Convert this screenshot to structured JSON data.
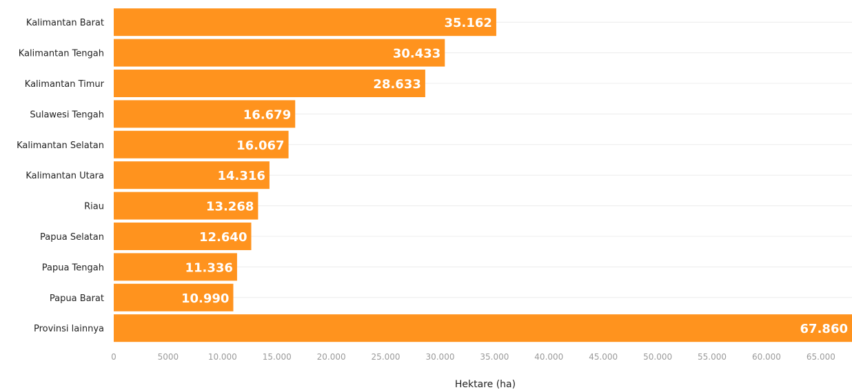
{
  "chart_data": {
    "type": "bar",
    "orientation": "horizontal",
    "categories": [
      "Kalimantan Barat",
      "Kalimantan Tengah",
      "Kalimantan Timur",
      "Sulawesi Tengah",
      "Kalimantan Selatan",
      "Kalimantan Utara",
      "Riau",
      "Papua Selatan",
      "Papua Tengah",
      "Papua Barat",
      "Provinsi lainnya"
    ],
    "values": [
      35162,
      30433,
      28633,
      16679,
      16067,
      14316,
      13268,
      12640,
      11336,
      10990,
      67860
    ],
    "value_labels": [
      "35.162",
      "30.433",
      "28.633",
      "16.679",
      "16.067",
      "14.316",
      "13.268",
      "12.640",
      "11.336",
      "10.990",
      "67.860"
    ],
    "xlabel": "Hektare (ha)",
    "xlim": [
      0,
      67860
    ],
    "xticks": [
      0,
      5000,
      10000,
      15000,
      20000,
      25000,
      30000,
      35000,
      40000,
      45000,
      50000,
      55000,
      60000,
      65000
    ],
    "xtick_labels": [
      "0",
      "5000",
      "10.000",
      "15.000",
      "20.000",
      "25.000",
      "30.000",
      "35.000",
      "40.000",
      "45.000",
      "50.000",
      "55.000",
      "60.000",
      "65.000"
    ],
    "grid": true,
    "bar_color": "#ff931e",
    "grid_color": "#ececec"
  }
}
